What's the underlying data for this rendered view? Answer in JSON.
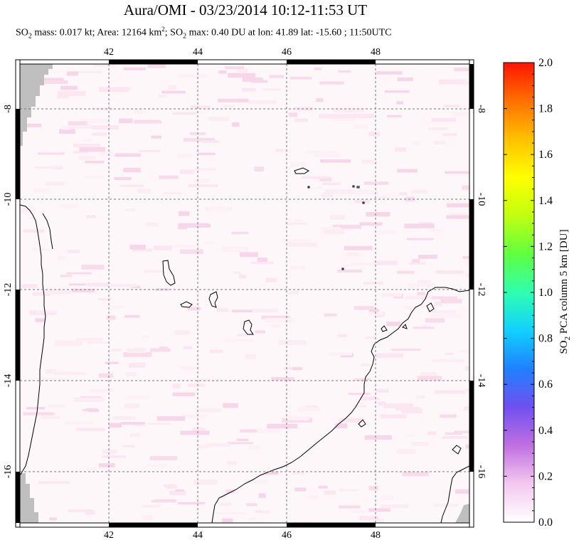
{
  "title": "Aura/OMI - 03/23/2014 10:12-11:53 UT",
  "subtitle": {
    "p1": "SO",
    "s1": "2",
    "p2": " mass: 0.017 kt; Area: 12164 km",
    "sup": "2",
    "p3": "; SO",
    "s2": "2",
    "p4": " max: 0.40 DU at lon: 41.89 lat: -15.60 ; 11:50UTC"
  },
  "map": {
    "lon_range": [
      40,
      50
    ],
    "lat_range": [
      -17,
      -7
    ],
    "lon_ticks": [
      "42",
      "44",
      "46",
      "48"
    ],
    "lat_ticks": [
      "-8",
      "-10",
      "-12",
      "-14",
      "-16"
    ],
    "gridlines": "dashed"
  },
  "colorbar": {
    "label": "SO2 PCA column 5 km [DU]",
    "label_parts": {
      "a": "SO",
      "sub": "2",
      "b": " PCA column 5 km [DU]"
    },
    "ticks": [
      "2.0",
      "1.8",
      "1.6",
      "1.4",
      "1.2",
      "1.0",
      "0.8",
      "0.6",
      "0.4",
      "0.2",
      "0.0"
    ],
    "range": [
      0,
      2.0
    ],
    "colors": [
      "#ffffff",
      "#f4c8f0",
      "#c070e0",
      "#7050f0",
      "#2080ff",
      "#10d0ff",
      "#30ffb0",
      "#60ff40",
      "#c0ff10",
      "#ffff00",
      "#ffc000",
      "#ff7000",
      "#ff1500"
    ]
  }
}
